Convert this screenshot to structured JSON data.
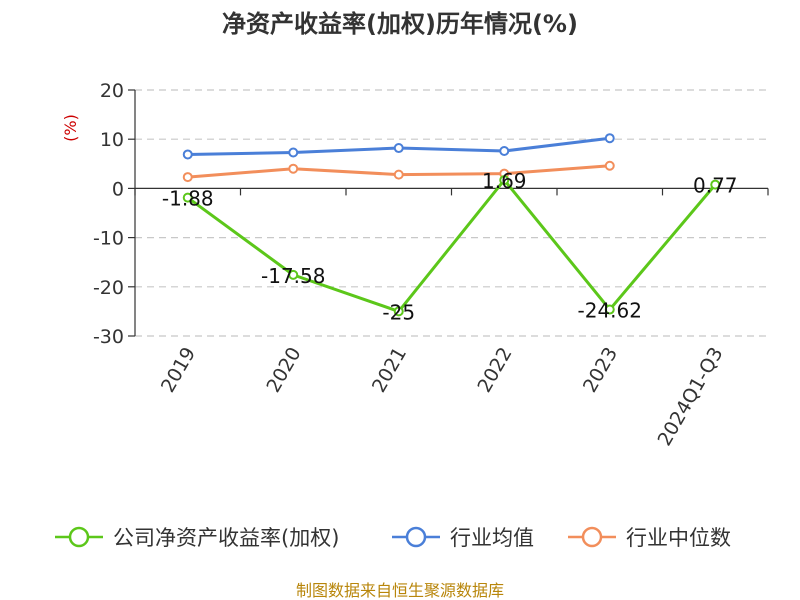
{
  "chart_data": {
    "type": "line",
    "title": "净资产收益率(加权)历年情况(%)",
    "ylabel": "(%)",
    "categories": [
      "2019",
      "2020",
      "2021",
      "2022",
      "2023",
      "2024Q1-Q3"
    ],
    "ylim": [
      -30,
      20
    ],
    "yticks": [
      "20",
      "10",
      "0",
      "-10",
      "-20",
      "-30"
    ],
    "grid": true,
    "legend_position": "bottom",
    "series": [
      {
        "name": "公司净资产收益率(加权)",
        "color": "#5cc71a",
        "values": [
          -1.88,
          -17.58,
          -25,
          1.69,
          -24.62,
          0.77
        ],
        "labels": [
          "-1.88",
          "-17.58",
          "-25",
          "1.69",
          "-24.62",
          "0.77"
        ]
      },
      {
        "name": "行业均值",
        "color": "#4a7fd8",
        "values": [
          6.9,
          7.3,
          8.2,
          7.6,
          10.2,
          null
        ]
      },
      {
        "name": "行业中位数",
        "color": "#f28e5b",
        "values": [
          2.3,
          4.0,
          2.8,
          3.0,
          4.6,
          null
        ]
      }
    ],
    "source": "制图数据来自恒生聚源数据库"
  }
}
